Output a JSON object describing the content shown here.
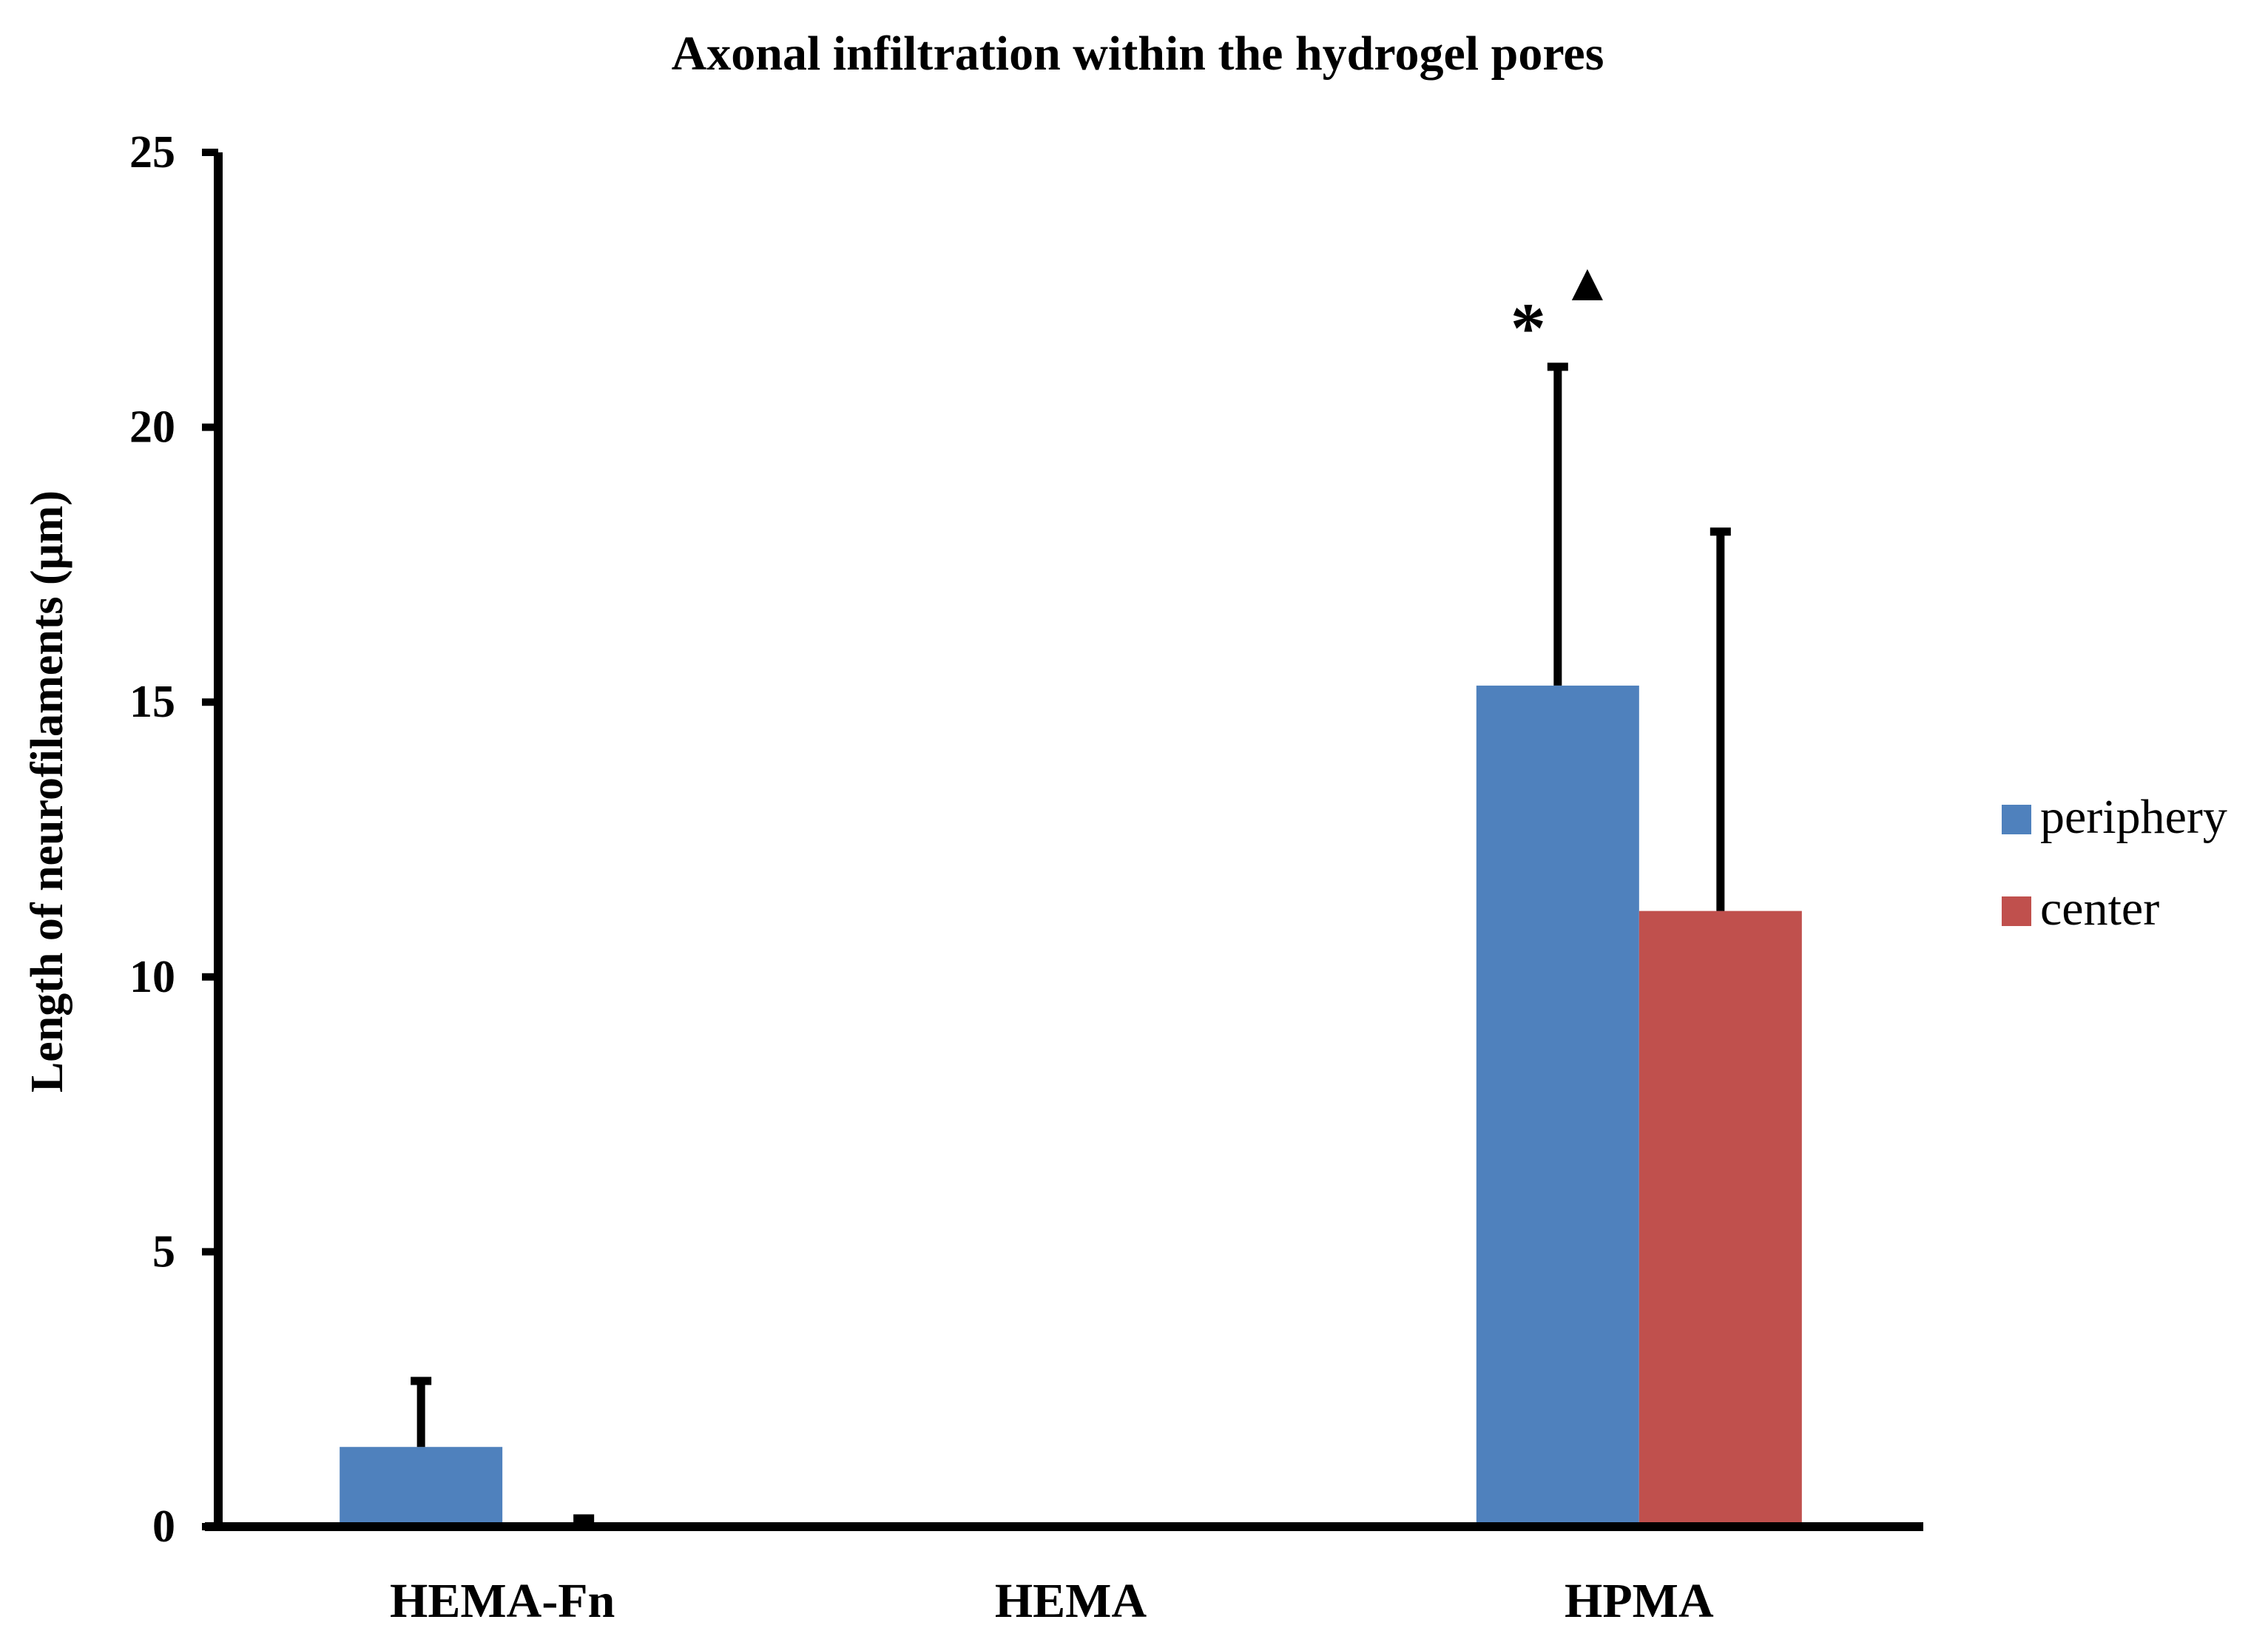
{
  "chart_data": {
    "type": "bar",
    "title": "Axonal infiltration within the hydrogel pores",
    "xlabel": "",
    "ylabel": "Length of neurofilaments (μm)",
    "ylim": [
      0,
      25
    ],
    "yticks": [
      "0",
      "5",
      "10",
      "15",
      "20",
      "25"
    ],
    "categories": [
      "HEMA-Fn",
      "HEMA",
      "HPMA"
    ],
    "series": [
      {
        "name": "periphery",
        "color": "#4F81BD",
        "values": [
          1.45,
          0,
          15.3
        ],
        "errors": [
          1.2,
          0,
          5.8
        ]
      },
      {
        "name": "center",
        "color": "#C0504D",
        "values": [
          0.0,
          0,
          11.2
        ],
        "errors": [
          0.15,
          0,
          6.9
        ]
      }
    ],
    "annotations": [
      {
        "text": "*",
        "category": "HPMA",
        "series": "periphery"
      },
      {
        "text": "▲",
        "category": "HPMA",
        "series": "periphery"
      }
    ],
    "legend_position": "right",
    "grid": false
  }
}
